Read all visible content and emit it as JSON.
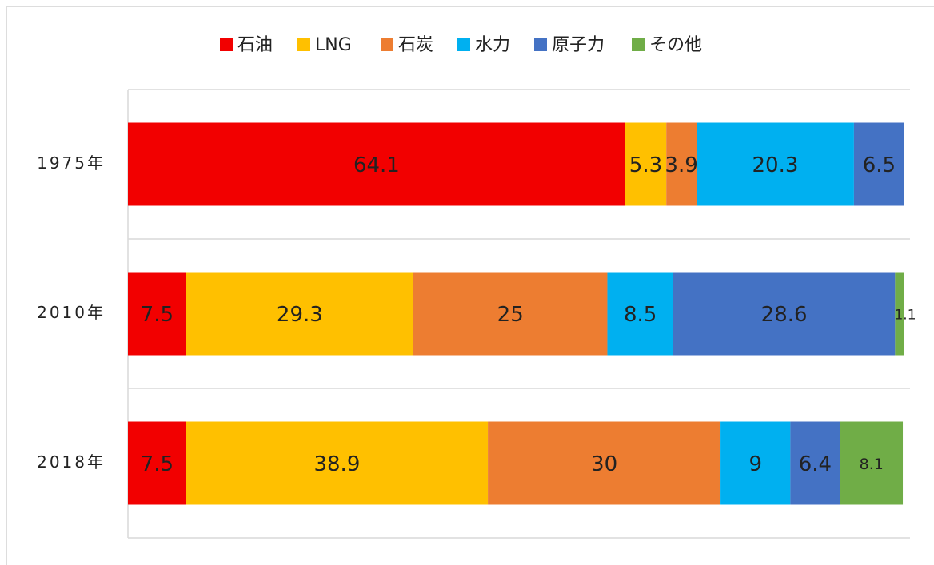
{
  "chart_data": {
    "type": "stacked-bar-horizontal",
    "categories": [
      "1975年",
      "2010年",
      "2018年"
    ],
    "series": [
      {
        "name": "石油",
        "color": "#f20000",
        "values": [
          64.1,
          7.5,
          7.5
        ]
      },
      {
        "name": "LNG",
        "color": "#ffc000",
        "values": [
          5.3,
          29.3,
          38.9
        ]
      },
      {
        "name": "石炭",
        "color": "#ed7d31",
        "values": [
          3.9,
          25,
          30
        ]
      },
      {
        "name": "水力",
        "color": "#00b0f0",
        "values": [
          20.3,
          8.5,
          9
        ]
      },
      {
        "name": "原子力",
        "color": "#4472c4",
        "values": [
          6.5,
          28.6,
          6.4
        ]
      },
      {
        "name": "その他",
        "color": "#70ad47",
        "values": [
          null,
          1.1,
          8.1
        ]
      }
    ],
    "xlim": [
      0,
      100
    ],
    "legend": "top"
  }
}
